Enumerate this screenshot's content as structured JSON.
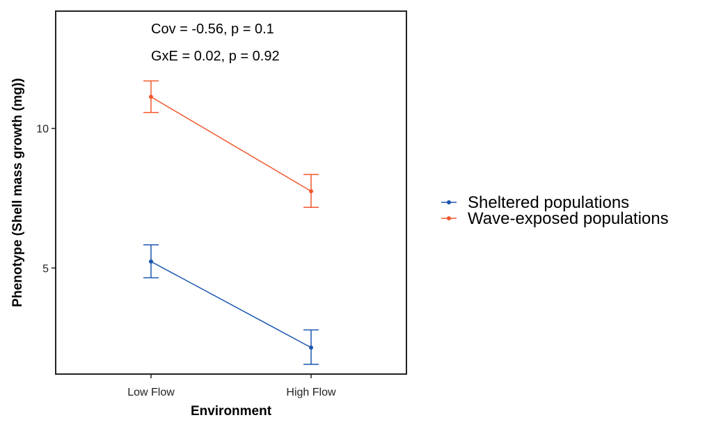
{
  "chart_data": {
    "type": "line",
    "title": "",
    "xlabel": "Environment",
    "ylabel": "Phenotype (Shell mass growth (mg))",
    "categories": [
      "Low Flow",
      "High Flow"
    ],
    "ylim": [
      1.2,
      14.2
    ],
    "yticks": [
      5,
      10
    ],
    "grid": false,
    "legend_position": "right",
    "annotations": [
      "Cov = -0.56, p = 0.1",
      "GxE = 0.02, p = 0.92"
    ],
    "series": [
      {
        "name": "Sheltered populations",
        "color": "#1a56b0",
        "values": [
          5.23,
          2.15
        ],
        "lower": [
          4.65,
          1.55
        ],
        "upper": [
          5.83,
          2.78
        ]
      },
      {
        "name": "Wave-exposed populations",
        "color": "#f2582e",
        "values": [
          11.13,
          7.75
        ],
        "lower": [
          10.57,
          7.17
        ],
        "upper": [
          11.7,
          8.35
        ]
      }
    ]
  }
}
